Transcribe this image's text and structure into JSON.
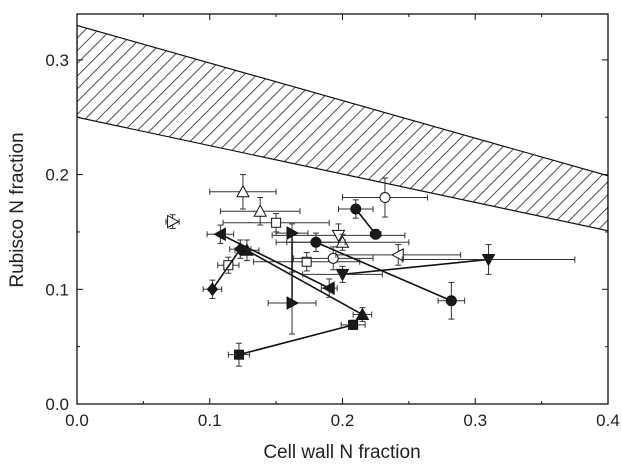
{
  "chart_data": {
    "type": "scatter",
    "title": "",
    "xlabel": "Cell wall N fraction",
    "ylabel": "Rubisco N fraction",
    "xlim": [
      0,
      0.4
    ],
    "ylim": [
      0,
      0.34
    ],
    "grid": false,
    "x_ticks": [
      0.0,
      0.1,
      0.2,
      0.3,
      0.4
    ],
    "x_tick_labels": [
      "0.0",
      "0.1",
      "0.2",
      "0.3",
      "0.4"
    ],
    "y_ticks": [
      0.0,
      0.1,
      0.2,
      0.3
    ],
    "y_tick_labels": [
      "0.0",
      "0.1",
      "0.2",
      "0.3"
    ],
    "band": {
      "style": "hatched",
      "upper": [
        [
          0.0,
          0.33
        ],
        [
          0.4,
          0.199
        ]
      ],
      "lower": [
        [
          0.0,
          0.25
        ],
        [
          0.4,
          0.151
        ]
      ]
    },
    "open_points": [
      {
        "marker": "triangle-right",
        "x": 0.072,
        "y": 0.159,
        "xerr": 0.005,
        "yerr": 0.006
      },
      {
        "marker": "triangle-up",
        "x": 0.125,
        "y": 0.185,
        "xerr": 0.025,
        "yerr": 0.015
      },
      {
        "marker": "triangle-up",
        "x": 0.138,
        "y": 0.168,
        "xerr": 0.03,
        "yerr": 0.012
      },
      {
        "marker": "square",
        "x": 0.15,
        "y": 0.158,
        "xerr": 0.04,
        "yerr": 0.008
      },
      {
        "marker": "square",
        "x": 0.114,
        "y": 0.121,
        "xerr": 0.008,
        "yerr": 0.007
      },
      {
        "marker": "square",
        "x": 0.173,
        "y": 0.124,
        "xerr": 0.04,
        "yerr": 0.008
      },
      {
        "marker": "circle",
        "x": 0.193,
        "y": 0.127,
        "xerr": 0.03,
        "yerr": 0.01
      },
      {
        "marker": "triangle-down",
        "x": 0.197,
        "y": 0.147,
        "xerr": 0.05,
        "yerr": 0.01
      },
      {
        "marker": "triangle-up",
        "x": 0.2,
        "y": 0.141,
        "xerr": 0.05,
        "yerr": 0.007
      },
      {
        "marker": "circle",
        "x": 0.232,
        "y": 0.18,
        "xerr": 0.032,
        "yerr": 0.017
      },
      {
        "marker": "triangle-left",
        "x": 0.242,
        "y": 0.13,
        "xerr": 0.047,
        "yerr": 0.009
      }
    ],
    "series": [
      {
        "marker": "square",
        "points": [
          {
            "x": 0.122,
            "y": 0.043,
            "xerr": 0.008,
            "yerr": 0.01
          },
          {
            "x": 0.208,
            "y": 0.069,
            "xerr": 0.009,
            "yerr": 0.004
          }
        ]
      },
      {
        "marker": "triangle-up",
        "points": [
          {
            "x": 0.128,
            "y": 0.134,
            "xerr": 0.009,
            "yerr": 0.009
          },
          {
            "x": 0.215,
            "y": 0.078,
            "xerr": 0.007,
            "yerr": 0.006
          }
        ]
      },
      {
        "marker": "triangle-right",
        "points": [
          {
            "x": 0.162,
            "y": 0.149,
            "xerr": 0.012,
            "yerr": 0.008
          },
          {
            "x": 0.162,
            "y": 0.088,
            "xerr": 0.018,
            "yerr": 0.027
          }
        ]
      },
      {
        "marker": "triangle-left",
        "points": [
          {
            "x": 0.108,
            "y": 0.148,
            "xerr": 0.01,
            "yerr": 0.008
          },
          {
            "x": 0.19,
            "y": 0.101,
            "xerr": 0.006,
            "yerr": 0.008
          }
        ]
      },
      {
        "marker": "diamond",
        "points": [
          {
            "x": 0.102,
            "y": 0.1,
            "xerr": 0.007,
            "yerr": 0.008
          },
          {
            "x": 0.123,
            "y": 0.135,
            "xerr": 0.008,
            "yerr": 0.008
          }
        ]
      },
      {
        "marker": "triangle-down",
        "points": [
          {
            "x": 0.2,
            "y": 0.113,
            "xerr": 0.03,
            "yerr": 0.007
          },
          {
            "x": 0.31,
            "y": 0.126,
            "xerr": 0.065,
            "yerr": 0.013
          }
        ]
      },
      {
        "marker": "circle",
        "points": [
          {
            "x": 0.18,
            "y": 0.141,
            "xerr": 0.022,
            "yerr": 0.008
          },
          {
            "x": 0.282,
            "y": 0.09,
            "xerr": 0.01,
            "yerr": 0.016
          }
        ]
      },
      {
        "marker": "circle",
        "points": [
          {
            "x": 0.21,
            "y": 0.17,
            "xerr": 0.013,
            "yerr": 0.008
          },
          {
            "x": 0.225,
            "y": 0.148,
            "xerr": 0.004,
            "yerr": 0.004
          }
        ]
      }
    ],
    "colors": {
      "filled": "#1a1a1a",
      "open_fill": "#ffffff",
      "stroke": "#111111",
      "error_bars": "#333333"
    }
  }
}
